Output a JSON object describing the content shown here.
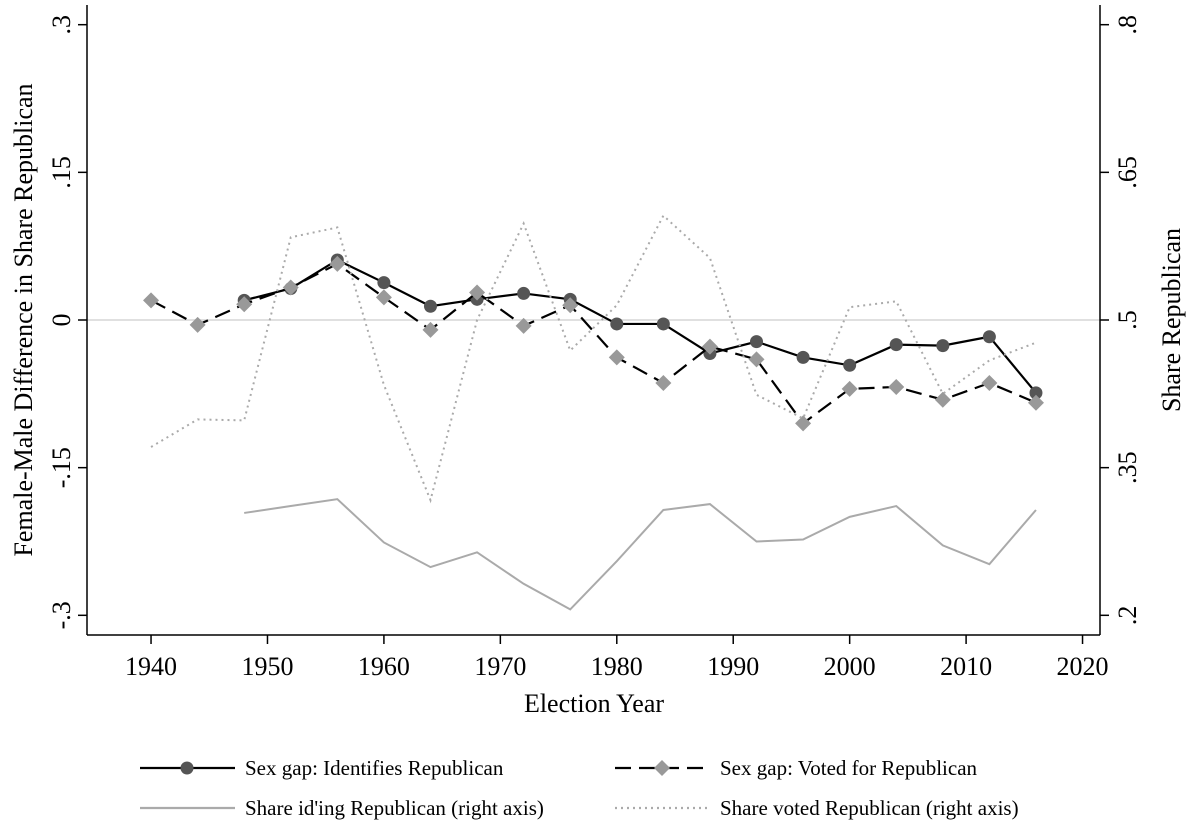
{
  "chart_data": {
    "type": "line",
    "x_label": "Election Year",
    "y_label": "Female-Male Difference in Share Republican",
    "y2_label": "Share Republican",
    "x": [
      1940,
      1944,
      1948,
      1952,
      1956,
      1960,
      1964,
      1968,
      1972,
      1976,
      1980,
      1984,
      1988,
      1992,
      1996,
      2000,
      2004,
      2008,
      2012,
      2016
    ],
    "xlim": [
      1934.5,
      2021.5
    ],
    "xticks": [
      1940,
      1950,
      1960,
      1970,
      1980,
      1990,
      2000,
      2010,
      2020
    ],
    "ylim": [
      -0.32,
      0.32
    ],
    "yticks": [
      {
        "value": -0.3,
        "label": "-.3"
      },
      {
        "value": -0.15,
        "label": "-.15"
      },
      0,
      {
        "value": 0.15,
        "label": ".15"
      },
      {
        "value": 0.3,
        "label": ".3"
      }
    ],
    "y2lim": [
      0.18,
      0.82
    ],
    "y2ticks": [
      {
        "value": 0.2,
        "label": ".2"
      },
      {
        "value": 0.35,
        "label": ".35"
      },
      {
        "value": 0.5,
        "label": ".5"
      },
      {
        "value": 0.65,
        "label": ".65"
      },
      {
        "value": 0.8,
        "label": ".8"
      }
    ],
    "reference_line": 0,
    "series": [
      {
        "name": "Sex gap: Identifies Republican",
        "color": "#000000",
        "marker_color": "#555555",
        "dash": "solid",
        "marker": "circle",
        "values": [
          null,
          null,
          0.02,
          0.032,
          0.061,
          0.038,
          0.014,
          0.021,
          0.027,
          0.021,
          -0.004,
          -0.004,
          -0.034,
          -0.022,
          -0.038,
          -0.046,
          -0.025,
          -0.026,
          -0.017,
          -0.074
        ]
      },
      {
        "name": "Sex gap: Voted for Republican",
        "color": "#000000",
        "marker_color": "#999999",
        "dash": "dashed",
        "marker": "diamond",
        "values": [
          0.02,
          -0.005,
          0.016,
          0.033,
          0.057,
          0.023,
          -0.01,
          0.028,
          -0.006,
          0.015,
          -0.038,
          -0.064,
          -0.027,
          -0.04,
          -0.105,
          -0.07,
          -0.068,
          -0.081,
          -0.064,
          -0.084
        ]
      },
      {
        "name": "Share id'ing Republican (right axis)",
        "color": "#aaaaaa",
        "dash": "solid",
        "axis": "y2",
        "values": [
          null,
          null,
          0.304,
          0.311,
          0.318,
          0.274,
          0.249,
          0.264,
          0.232,
          0.206,
          0.255,
          0.307,
          0.313,
          0.275,
          0.277,
          0.3,
          0.311,
          0.271,
          0.252,
          0.307
        ]
      },
      {
        "name": "Share voted Republican (right axis)",
        "color": "#aaaaaa",
        "dash": "dotted",
        "axis": "y2",
        "values": [
          0.371,
          0.399,
          0.398,
          0.584,
          0.594,
          0.434,
          0.317,
          0.5,
          0.598,
          0.469,
          0.515,
          0.606,
          0.563,
          0.424,
          0.4,
          0.513,
          0.519,
          0.425,
          0.459,
          0.477
        ]
      }
    ]
  }
}
